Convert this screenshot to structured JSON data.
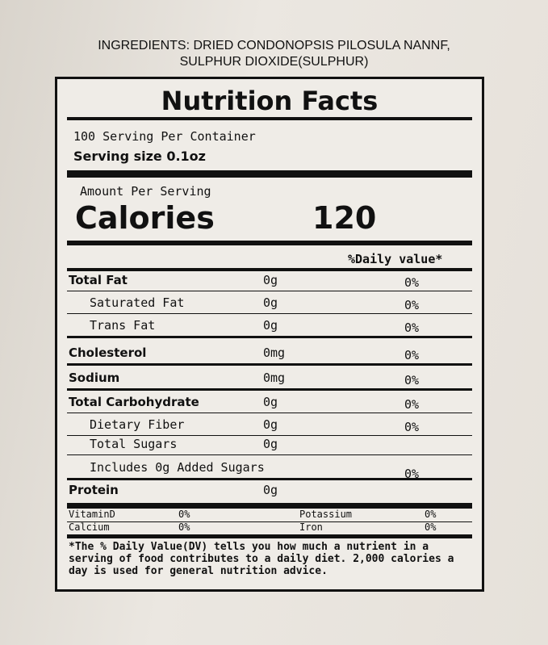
{
  "ingredients": {
    "line1": "INGREDIENTS: DRIED CONDONOPSIS PILOSULA NANNF,",
    "line2": "SULPHUR DIOXIDE(SULPHUR)"
  },
  "label": {
    "title": "Nutrition Facts",
    "servings": "100  Serving Per Container",
    "serving_size": "Serving size  0.1oz",
    "amount_per_serving": "Amount Per Serving",
    "calories_label": "Calories",
    "calories_value": "120",
    "dv_header": "%Daily value*",
    "rows": [
      {
        "name": "Total Fat",
        "amount": "0g",
        "dv": "0%"
      },
      {
        "name": "Saturated Fat",
        "amount": "0g",
        "dv": "0%"
      },
      {
        "name": "Trans Fat",
        "amount": "0g",
        "dv": "0%"
      },
      {
        "name": "Cholesterol",
        "amount": "0mg",
        "dv": "0%"
      },
      {
        "name": "Sodium",
        "amount": "0mg",
        "dv": "0%"
      },
      {
        "name": "Total Carbohydrate",
        "amount": "0g",
        "dv": "0%"
      },
      {
        "name": "Dietary Fiber",
        "amount": "0g",
        "dv": "0%"
      },
      {
        "name": "Total Sugars",
        "amount": "0g"
      },
      {
        "name": "Includes 0g Added Sugars",
        "dv": "0%"
      },
      {
        "name": "Protein",
        "amount": "0g"
      }
    ],
    "vitamins": [
      {
        "name": "VitaminD",
        "dv": "0%"
      },
      {
        "name": "Potassium",
        "dv": "0%"
      },
      {
        "name": "Calcium",
        "dv": "0%"
      },
      {
        "name": "Iron",
        "dv": "0%"
      }
    ],
    "footnote": "*The % Daily Value(DV) tells you how much a nutrient in a serving of food contributes to a daily diet. 2,000 calories a day is used for general nutrition advice."
  }
}
